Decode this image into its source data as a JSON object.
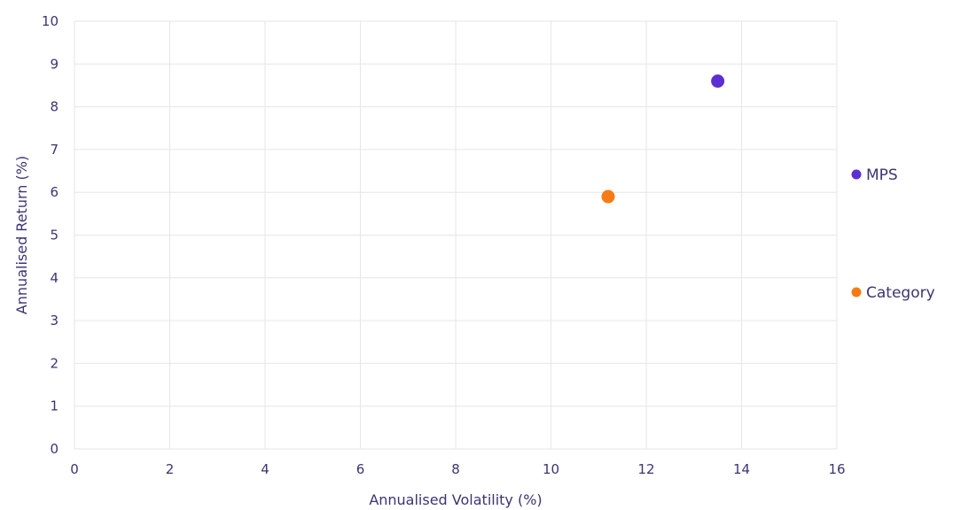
{
  "chart_data": {
    "type": "scatter",
    "xlabel": "Annualised Volatility (%)",
    "ylabel": "Annualised Return (%)",
    "xlim": [
      0,
      16
    ],
    "ylim": [
      0,
      10
    ],
    "x_ticks": [
      "0",
      "2",
      "4",
      "6",
      "8",
      "10",
      "12",
      "14",
      "16"
    ],
    "y_ticks": [
      "0",
      "1",
      "2",
      "3",
      "4",
      "5",
      "6",
      "7",
      "8",
      "9",
      "10"
    ],
    "grid": true,
    "legend_position": "right",
    "series": [
      {
        "name": "MPS",
        "color": "#5b2fd1",
        "x": [
          13.5
        ],
        "y": [
          8.6
        ]
      },
      {
        "name": "Category",
        "color": "#f57c14",
        "x": [
          11.2
        ],
        "y": [
          5.9
        ]
      }
    ]
  }
}
